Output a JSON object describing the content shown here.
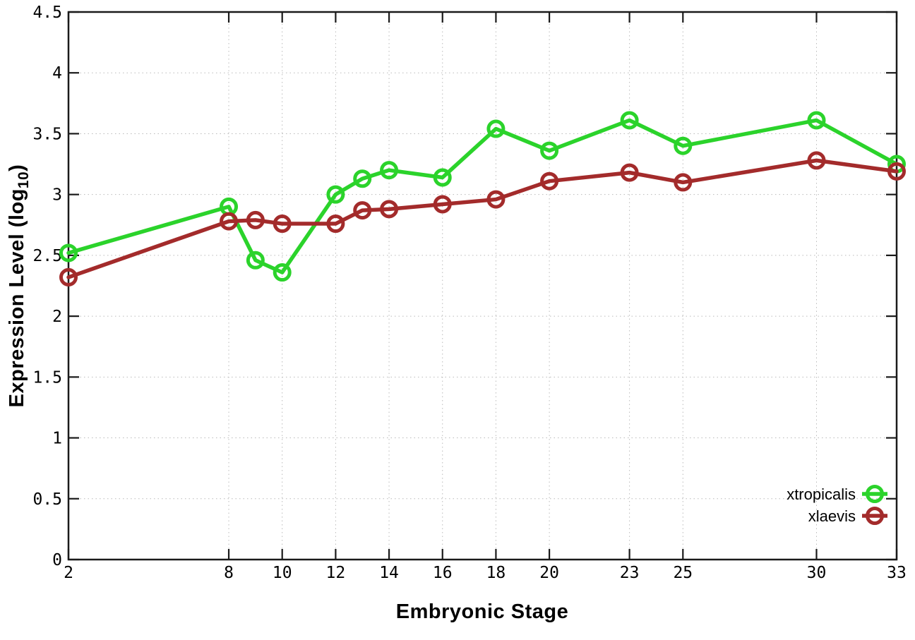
{
  "chart_data": {
    "type": "line",
    "title": "",
    "xlabel": "Embryonic Stage",
    "ylabel": "Expression Level (log10)",
    "ylabel_main": "Expression Level (log",
    "ylabel_sub": "10",
    "ylabel_close": ")",
    "x": [
      2,
      8,
      9,
      10,
      12,
      13,
      14,
      16,
      18,
      20,
      23,
      25,
      30,
      33
    ],
    "xticks": [
      2,
      8,
      10,
      12,
      14,
      16,
      18,
      20,
      23,
      25,
      30,
      33
    ],
    "yticks": [
      0,
      0.5,
      1,
      1.5,
      2,
      2.5,
      3,
      3.5,
      4,
      4.5
    ],
    "xlim": [
      2,
      33
    ],
    "ylim": [
      0,
      4.5
    ],
    "grid": true,
    "grid_style": "dotted",
    "border": "full-box-mirrored-ticks",
    "marker": "open-circle",
    "legend_position": "inside-bottom-right",
    "colors": {
      "axis": "#1a1a1a",
      "grid": "#bababa",
      "text": "#000000",
      "background": "#ffffff"
    },
    "series": [
      {
        "name": "xtropicalis",
        "color": "#2bd32b",
        "values": [
          2.52,
          2.9,
          2.46,
          2.36,
          3.0,
          3.13,
          3.2,
          3.14,
          3.54,
          3.36,
          3.61,
          3.4,
          3.61,
          3.25
        ]
      },
      {
        "name": "xlaevis",
        "color": "#a32b2b",
        "values": [
          2.32,
          2.78,
          2.79,
          2.76,
          2.76,
          2.87,
          2.88,
          2.92,
          2.96,
          3.11,
          3.18,
          3.1,
          3.28,
          3.19
        ]
      }
    ]
  }
}
